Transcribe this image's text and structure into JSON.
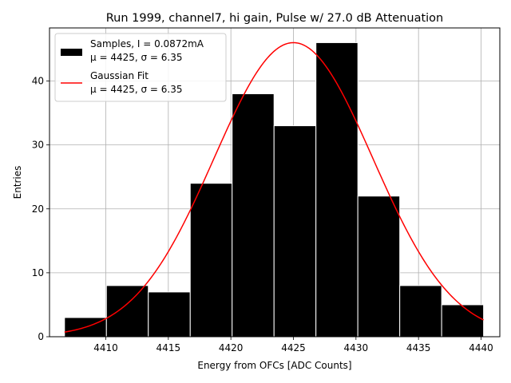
{
  "chart_data": {
    "type": "bar",
    "title": "Run 1999, channel7, hi gain, Pulse w/ 27.0 dB Attenuation",
    "xlabel": "Energy from OFCs [ADC Counts]",
    "ylabel": "Entries",
    "xlim": [
      4405.5,
      4441.5
    ],
    "ylim": [
      0,
      48.3
    ],
    "grid": true,
    "xticks": [
      4410,
      4415,
      4420,
      4425,
      4430,
      4435,
      4440
    ],
    "yticks": [
      0,
      10,
      20,
      30,
      40
    ],
    "bin_edges": [
      4406.7,
      4410.05,
      4413.4,
      4416.75,
      4420.1,
      4423.45,
      4426.8,
      4430.15,
      4433.5,
      4436.85,
      4440.2
    ],
    "counts": [
      3,
      8,
      7,
      24,
      38,
      33,
      46,
      22,
      8,
      5
    ],
    "bar_color": "#000000",
    "fit": {
      "mu": 4425,
      "sigma": 6.35,
      "amplitude": 46,
      "x_range": [
        4406.7,
        4440.2
      ],
      "color": "#ff0000"
    },
    "legend": {
      "location": "upper-left",
      "entries": [
        {
          "line1": "Samples, I = 0.0872mA",
          "line2": "μ = 4425, σ = 6.35",
          "swatch": "bar"
        },
        {
          "line1": "Gaussian Fit",
          "line2": "μ = 4425, σ = 6.35",
          "swatch": "line"
        }
      ]
    }
  }
}
